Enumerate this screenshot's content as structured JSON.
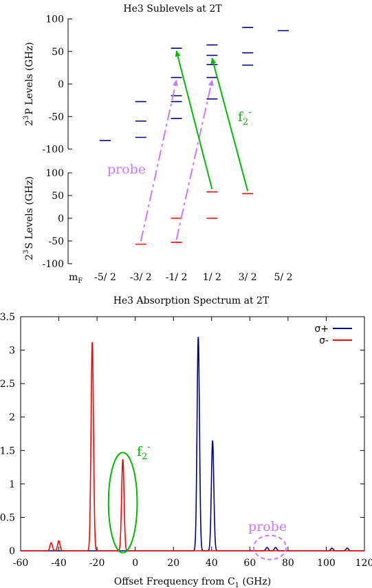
{
  "chart_data": [
    {
      "type": "scatter",
      "title": "He3 Sublevels at 2T",
      "x_label": "mF",
      "x_categories": [
        "-5/ 2",
        "-3/ 2",
        "-1/ 2",
        "1/ 2",
        "3/ 2",
        "5/ 2"
      ],
      "upper_panel": {
        "ylabel_text": "P Levels (GHz)",
        "ylabel_sup": "3",
        "ylabel_pre": "2",
        "ylim": [
          -100,
          100
        ],
        "yticks": [
          100,
          50,
          0,
          -50,
          -100
        ],
        "color": "#000080",
        "levels": [
          {
            "mF": "-5/ 2",
            "values": [
              -87
            ]
          },
          {
            "mF": "-3/ 2",
            "values": [
              -27,
              -57,
              -82
            ]
          },
          {
            "mF": "-1/ 2",
            "values": [
              55,
              10,
              -18,
              -27,
              -53
            ]
          },
          {
            "mF": "1/ 2",
            "values": [
              60,
              44,
              30,
              10,
              -23
            ]
          },
          {
            "mF": "3/ 2",
            "values": [
              87,
              48,
              29
            ]
          },
          {
            "mF": "5/ 2",
            "values": [
              82
            ]
          }
        ]
      },
      "lower_panel": {
        "ylabel_text": "S Levels (GHz)",
        "ylabel_sup": "3",
        "ylabel_pre": "2",
        "ylim": [
          -100,
          100
        ],
        "yticks": [
          100,
          50,
          0,
          -50,
          -100
        ],
        "color": "#ff0000",
        "levels": [
          {
            "mF": "-3/ 2",
            "values": [
              -57
            ]
          },
          {
            "mF": "-1/ 2",
            "values": [
              0,
              -53
            ]
          },
          {
            "mF": "1/ 2",
            "values": [
              58,
              0
            ]
          },
          {
            "mF": "3/ 2",
            "values": [
              54
            ]
          }
        ]
      },
      "transitions": [
        {
          "label": "probe",
          "from": {
            "mF": "-3/ 2",
            "s_value": -57
          },
          "to": {
            "mF": "-1/ 2",
            "p_value": 10
          },
          "color": "#cc77ff",
          "style": "dashed"
        },
        {
          "label": "probe",
          "from": {
            "mF": "-1/ 2",
            "s_value": -53
          },
          "to": {
            "mF": "1/ 2",
            "p_value": 10
          },
          "color": "#cc77ff",
          "style": "dashed"
        },
        {
          "label": "f2-",
          "from": {
            "mF": "1/ 2",
            "s_value": 58
          },
          "to": {
            "mF": "-1/ 2",
            "p_value": 55
          },
          "color": "#00bb00",
          "style": "solid"
        },
        {
          "label": "f2-",
          "from": {
            "mF": "3/ 2",
            "s_value": 54
          },
          "to": {
            "mF": "1/ 2",
            "p_value": 44
          },
          "color": "#00bb00",
          "style": "solid"
        }
      ],
      "annotations": {
        "probe": "probe",
        "f2_base": "f",
        "f2_sub": "2",
        "f2_sup": "-"
      }
    },
    {
      "type": "line",
      "title": "He3 Absorption Spectrum at 2T",
      "xlabel_pre": "Offset Frequency from C",
      "xlabel_sub": "1",
      "xlabel_post": " (GHz)",
      "xlim": [
        -60,
        120
      ],
      "ylim": [
        0,
        3.5
      ],
      "xticks": [
        -60,
        -40,
        -20,
        0,
        20,
        40,
        60,
        80,
        100,
        120
      ],
      "yticks": [
        0,
        0.5,
        1,
        1.5,
        2,
        2.5,
        3,
        3.5
      ],
      "legend_position": "top-right",
      "peak_width_ghz": 0.9,
      "series": [
        {
          "name": "σ+",
          "color": "#000080",
          "peaks": [
            {
              "x": 33,
              "height": 3.2
            },
            {
              "x": 40.5,
              "height": 1.65
            },
            {
              "x": 69,
              "height": 0.05
            },
            {
              "x": 73.5,
              "height": 0.05
            },
            {
              "x": 103,
              "height": 0.04
            },
            {
              "x": 111,
              "height": 0.04
            }
          ]
        },
        {
          "name": "σ-",
          "color": "#ff0000",
          "peaks": [
            {
              "x": -44,
              "height": 0.12
            },
            {
              "x": -40,
              "height": 0.15
            },
            {
              "x": -22.5,
              "height": 3.12
            },
            {
              "x": -6.5,
              "height": 1.37
            }
          ]
        }
      ],
      "annotations": {
        "probe": "probe",
        "f2_base": "f",
        "f2_sub": "2",
        "f2_sup": "-"
      },
      "ellipses": [
        {
          "label": "f2-",
          "cx": -6.5,
          "cy": 0.72,
          "rx": 7.5,
          "ry": 0.75,
          "color": "#00bb00"
        },
        {
          "label": "probe",
          "cx": 70.5,
          "cy": 0.05,
          "rx": 8.5,
          "ry": 0.18,
          "color": "#cc77ff",
          "style": "dashed"
        }
      ]
    }
  ]
}
